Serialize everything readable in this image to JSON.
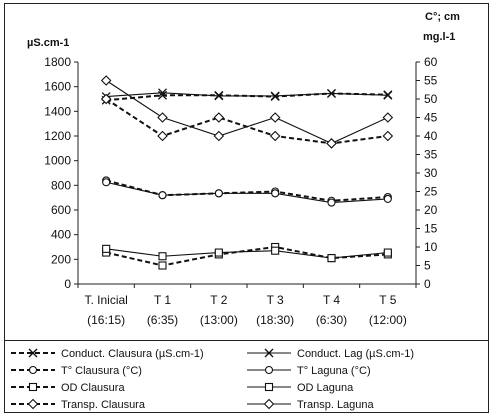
{
  "chart_data": {
    "type": "line",
    "left_axis": {
      "title": "µS.cm-1",
      "ylim": [
        0,
        1800
      ],
      "ticks": [
        "0",
        "200",
        "400",
        "600",
        "800",
        "1000",
        "1200",
        "1400",
        "1600",
        "1800"
      ]
    },
    "right_axis": {
      "title_line1": "C°; cm",
      "title_line2": "mg.l-1",
      "ylim": [
        0,
        60
      ],
      "ticks": [
        "0",
        "5",
        "10",
        "15",
        "20",
        "25",
        "30",
        "35",
        "40",
        "45",
        "50",
        "55",
        "60"
      ]
    },
    "categories": [
      {
        "label": "T. Inicial",
        "sub": "(16:15)"
      },
      {
        "label": "T 1",
        "sub": "(6:35)"
      },
      {
        "label": "T 2",
        "sub": "(13:00)"
      },
      {
        "label": "T 3",
        "sub": "(18:30)"
      },
      {
        "label": "T 4",
        "sub": "(6:30)"
      },
      {
        "label": "T 5",
        "sub": "(12:00)"
      }
    ],
    "series": [
      {
        "name": "Conduct. Clausura (µS.cm-1)",
        "axis": "left",
        "marker": "x",
        "dashed": true,
        "values": [
          1490,
          1530,
          1530,
          1520,
          1545,
          1535
        ]
      },
      {
        "name": "Conduct. Lag (µS.cm-1)",
        "axis": "left",
        "marker": "x",
        "dashed": false,
        "values": [
          1520,
          1550,
          1525,
          1525,
          1545,
          1530
        ]
      },
      {
        "name": "T° Clausura (°C)",
        "axis": "right",
        "marker": "circle",
        "dashed": true,
        "values": [
          28,
          24,
          24.5,
          25,
          22.5,
          23.5
        ]
      },
      {
        "name": "T° Laguna (°C)",
        "axis": "right",
        "marker": "circle",
        "dashed": false,
        "values": [
          27.5,
          24,
          24.5,
          24.5,
          22,
          23
        ]
      },
      {
        "name": "OD Clausura",
        "axis": "right",
        "marker": "square",
        "dashed": true,
        "values": [
          8.5,
          5,
          8,
          10,
          7,
          8
        ]
      },
      {
        "name": "OD Laguna",
        "axis": "right",
        "marker": "square",
        "dashed": false,
        "values": [
          9.5,
          7.5,
          8.5,
          9,
          7,
          8.5
        ]
      },
      {
        "name": "Transp. Clausura",
        "axis": "right",
        "marker": "diamond",
        "dashed": true,
        "values": [
          50,
          40,
          45,
          40,
          38,
          40
        ]
      },
      {
        "name": "Transp. Laguna",
        "axis": "right",
        "marker": "diamond",
        "dashed": false,
        "values": [
          55,
          45,
          40,
          45,
          38,
          45
        ]
      }
    ]
  }
}
